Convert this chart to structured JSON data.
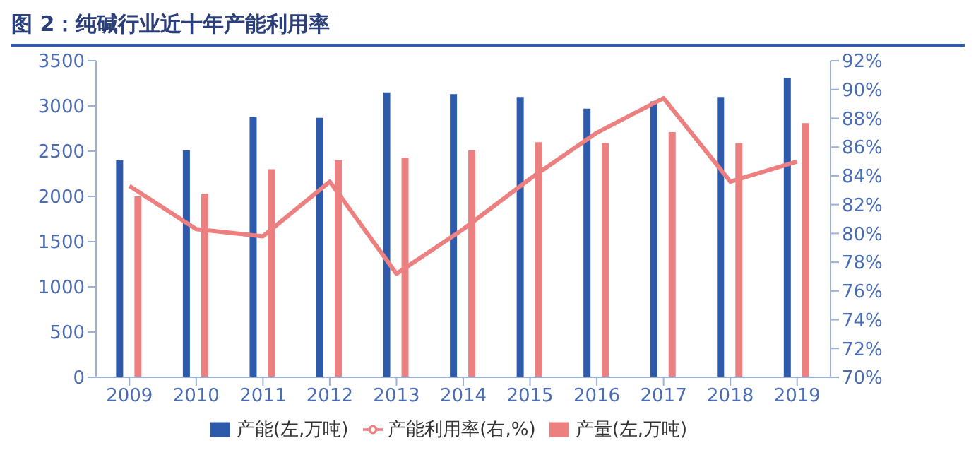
{
  "chart_data": {
    "type": "bar",
    "title": "图 2：纯碱行业近十年产能利用率",
    "categories": [
      "2009",
      "2010",
      "2011",
      "2012",
      "2013",
      "2014",
      "2015",
      "2016",
      "2017",
      "2018",
      "2019"
    ],
    "series": [
      {
        "name": "产能(左,万吨)",
        "color": "#2e5aac",
        "values": [
          2400,
          2510,
          2880,
          2870,
          3150,
          3130,
          3100,
          2970,
          3050,
          3100,
          3310
        ]
      },
      {
        "name": "产量(左,万吨)",
        "color": "#ec8080",
        "values": [
          2000,
          2030,
          2300,
          2400,
          2430,
          2510,
          2600,
          2590,
          2710,
          2590,
          2810
        ]
      },
      {
        "name": "产能利用率(右,%)",
        "type": "line",
        "axis": "y2",
        "color": "#ec8080",
        "values": [
          83.3,
          80.3,
          79.8,
          83.6,
          77.2,
          80.3,
          83.8,
          87.0,
          89.4,
          83.6,
          85.0
        ]
      }
    ],
    "ylim": [
      0,
      3500
    ],
    "yticks": [
      0,
      500,
      1000,
      1500,
      2000,
      2500,
      3000,
      3500
    ],
    "y2lim": [
      70,
      92
    ],
    "y2ticks": [
      {
        "value": 70,
        "label": "70%"
      },
      {
        "value": 72,
        "label": "72%"
      },
      {
        "value": 74,
        "label": "74%"
      },
      {
        "value": 76,
        "label": "76%"
      },
      {
        "value": 78,
        "label": "78%"
      },
      {
        "value": 80,
        "label": "80%"
      },
      {
        "value": 82,
        "label": "82%"
      },
      {
        "value": 84,
        "label": "84%"
      },
      {
        "value": 86,
        "label": "86%"
      },
      {
        "value": 88,
        "label": "88%"
      },
      {
        "value": 90,
        "label": "90%"
      },
      {
        "value": 92,
        "label": "92%"
      }
    ],
    "grid": false,
    "legend": "bottom",
    "marker": "none"
  }
}
